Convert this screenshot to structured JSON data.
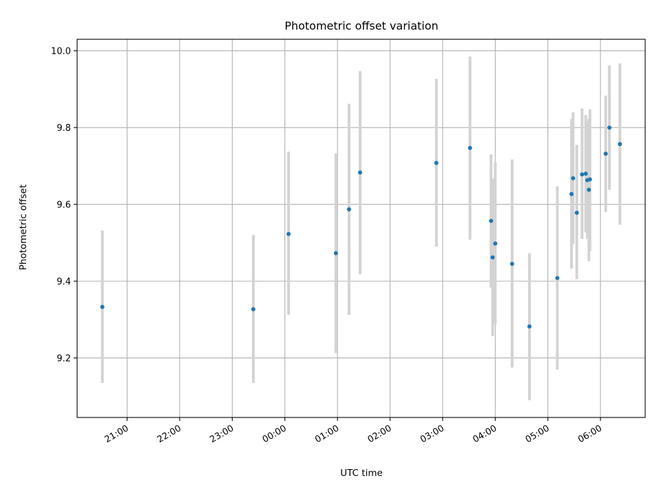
{
  "chart_data": {
    "type": "scatter",
    "title": "Photometric offset variation",
    "xlabel": "UTC time",
    "ylabel": "Photometric offset",
    "x_unit": "hours",
    "xlim": [
      -3.95,
      6.85
    ],
    "ylim": [
      9.045,
      10.03
    ],
    "grid": true,
    "x_ticks": [
      {
        "value": -3,
        "label": "21:00"
      },
      {
        "value": -2,
        "label": "22:00"
      },
      {
        "value": -1,
        "label": "23:00"
      },
      {
        "value": 0,
        "label": "00:00"
      },
      {
        "value": 1,
        "label": "01:00"
      },
      {
        "value": 2,
        "label": "02:00"
      },
      {
        "value": 3,
        "label": "03:00"
      },
      {
        "value": 4,
        "label": "04:00"
      },
      {
        "value": 5,
        "label": "05:00"
      },
      {
        "value": 6,
        "label": "06:00"
      }
    ],
    "y_ticks": [
      {
        "value": 9.2,
        "label": "9.2"
      },
      {
        "value": 9.4,
        "label": "9.4"
      },
      {
        "value": 9.6,
        "label": "9.6"
      },
      {
        "value": 9.8,
        "label": "9.8"
      },
      {
        "value": 10.0,
        "label": "10.0"
      }
    ],
    "colors": {
      "points": "#1f77b4",
      "errorbars": "#d3d3d3",
      "grid": "#b0b0b0"
    },
    "points": [
      {
        "x": -3.47,
        "y": 9.333,
        "lo": 9.135,
        "hi": 9.532
      },
      {
        "x": -0.6,
        "y": 9.327,
        "lo": 9.135,
        "hi": 9.52
      },
      {
        "x": 0.07,
        "y": 9.523,
        "lo": 9.312,
        "hi": 9.737
      },
      {
        "x": 0.97,
        "y": 9.473,
        "lo": 9.213,
        "hi": 9.733
      },
      {
        "x": 1.22,
        "y": 9.587,
        "lo": 9.312,
        "hi": 9.862
      },
      {
        "x": 1.43,
        "y": 9.683,
        "lo": 9.418,
        "hi": 9.947
      },
      {
        "x": 2.88,
        "y": 9.708,
        "lo": 9.49,
        "hi": 9.927
      },
      {
        "x": 3.52,
        "y": 9.747,
        "lo": 9.508,
        "hi": 9.985
      },
      {
        "x": 3.92,
        "y": 9.557,
        "lo": 9.383,
        "hi": 9.73
      },
      {
        "x": 3.95,
        "y": 9.462,
        "lo": 9.257,
        "hi": 9.667
      },
      {
        "x": 4.0,
        "y": 9.498,
        "lo": 9.287,
        "hi": 9.71
      },
      {
        "x": 4.32,
        "y": 9.445,
        "lo": 9.175,
        "hi": 9.717
      },
      {
        "x": 4.65,
        "y": 9.282,
        "lo": 9.09,
        "hi": 9.473
      },
      {
        "x": 5.18,
        "y": 9.408,
        "lo": 9.17,
        "hi": 9.647
      },
      {
        "x": 5.45,
        "y": 9.627,
        "lo": 9.433,
        "hi": 9.823
      },
      {
        "x": 5.48,
        "y": 9.668,
        "lo": 9.497,
        "hi": 9.84
      },
      {
        "x": 5.55,
        "y": 9.578,
        "lo": 9.405,
        "hi": 9.755
      },
      {
        "x": 5.65,
        "y": 9.678,
        "lo": 9.51,
        "hi": 9.85
      },
      {
        "x": 5.72,
        "y": 9.68,
        "lo": 9.527,
        "hi": 9.833
      },
      {
        "x": 5.75,
        "y": 9.663,
        "lo": 9.51,
        "hi": 9.817
      },
      {
        "x": 5.78,
        "y": 9.638,
        "lo": 9.452,
        "hi": 9.823
      },
      {
        "x": 5.8,
        "y": 9.665,
        "lo": 9.478,
        "hi": 9.848
      },
      {
        "x": 6.1,
        "y": 9.732,
        "lo": 9.58,
        "hi": 9.883
      },
      {
        "x": 6.17,
        "y": 9.8,
        "lo": 9.638,
        "hi": 9.962
      },
      {
        "x": 6.37,
        "y": 9.757,
        "lo": 9.547,
        "hi": 9.967
      }
    ]
  }
}
